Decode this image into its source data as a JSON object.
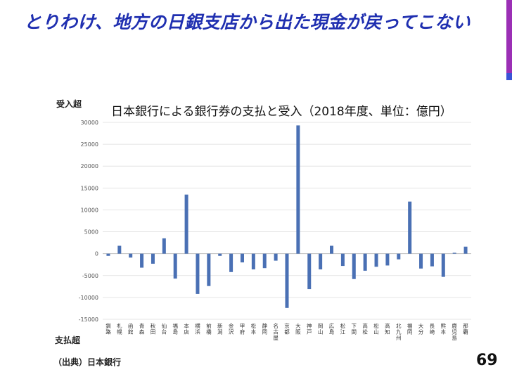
{
  "slide": {
    "title": "とりわけ、地方の日銀支店から出た現金が戻ってこない",
    "label_up": "受入超",
    "label_down": "支払超",
    "source": "（出典）日本銀行",
    "page_number": "69"
  },
  "chart_data": {
    "type": "bar",
    "title": "日本銀行による銀行券の支払と受入（2018年度、単位：億円）",
    "categories": [
      "釧路",
      "札幌",
      "函館",
      "青森",
      "秋田",
      "仙台",
      "福島",
      "本店",
      "横浜",
      "前橋",
      "新潟",
      "金沢",
      "甲府",
      "松本",
      "静岡",
      "名古屋",
      "京都",
      "大阪",
      "神戸",
      "岡山",
      "広島",
      "松江",
      "下関",
      "高松",
      "松山",
      "高知",
      "北九州",
      "福岡",
      "大分",
      "長崎",
      "熊本",
      "鹿児島",
      "那覇"
    ],
    "values": [
      -500,
      1800,
      -900,
      -3200,
      -2300,
      3500,
      -5700,
      13500,
      -9200,
      -7400,
      -500,
      -4200,
      -2000,
      -3600,
      -3300,
      -1600,
      -12400,
      29300,
      -8100,
      -3600,
      1800,
      -2800,
      -5800,
      -3900,
      -3000,
      -2700,
      -1300,
      11900,
      -3400,
      -2900,
      -5300,
      200,
      1600
    ],
    "ylim": [
      -15000,
      30000
    ],
    "yticks": [
      30000,
      25000,
      20000,
      15000,
      10000,
      5000,
      0,
      -5000,
      -10000,
      -15000
    ],
    "bar_color": "#4a70b4",
    "grid": true
  }
}
